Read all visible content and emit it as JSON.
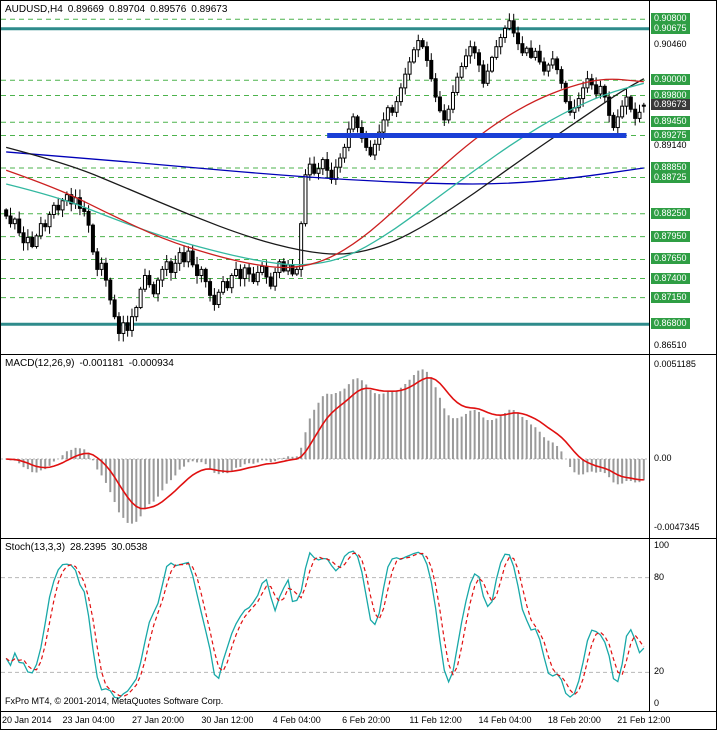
{
  "header": {
    "symbol": "AUDUSD,H4",
    "open": "0.89669",
    "high": "0.89704",
    "low": "0.89576",
    "close": "0.89673"
  },
  "footer": {
    "copyright": "FxPro MT4, © 2001-2014, MetaQuotes Software Corp."
  },
  "indicators": {
    "macd": {
      "label": "MACD(12,26,9)",
      "value_main": "-0.001181",
      "value_signal": "-0.000934",
      "axis_top": "0.0051185",
      "axis_zero": "0.00",
      "axis_bottom": "-0.0047345",
      "params": {
        "fast": 12,
        "slow": 26,
        "signal": 9
      }
    },
    "stoch": {
      "label": "Stoch(13,3,3)",
      "value_k": "28.2395",
      "value_d": "30.0538",
      "marks": [
        {
          "v": 100,
          "label": "100"
        },
        {
          "v": 80,
          "label": "80"
        },
        {
          "v": 20,
          "label": "20"
        },
        {
          "v": 0,
          "label": "0"
        }
      ],
      "levels": [
        80,
        20
      ],
      "params": {
        "k": 13,
        "d": 3,
        "slowing": 3
      }
    }
  },
  "colors": {
    "up_candle": "#ffffff",
    "down_candle": "#000000",
    "candle_outline": "#000000",
    "level_dashed": "#4db34d",
    "level_solid": "#2e8b8b",
    "badge": "#2f9e44",
    "badge_current": "#3a3a3a",
    "support": "#1a3fd6",
    "macd_hist": "#9a9a9a",
    "macd_signal": "#e01010",
    "stoch_k": "#18a8a8",
    "stoch_d": "#e01010",
    "grid": "#b8b8b8"
  },
  "chart_data": {
    "type": "candlestick+indicators",
    "symbol": "AUDUSD",
    "timeframe": "H4",
    "price_axis": {
      "min": 0.8645,
      "max": 0.91,
      "ticks": [
        {
          "value": 0.9046,
          "label": "0.90460"
        },
        {
          "value": 0.8914,
          "label": "0.89140"
        },
        {
          "value": 0.8651,
          "label": "0.86510"
        }
      ]
    },
    "current_price": 0.89673,
    "levels": [
      {
        "price": 0.908,
        "style": "dashed",
        "label": "0.90800"
      },
      {
        "price": 0.90675,
        "style": "solid",
        "label": "0.90675"
      },
      {
        "price": 0.9,
        "style": "dashed",
        "label": "0.90000"
      },
      {
        "price": 0.898,
        "style": "dashed",
        "label": "0.89800"
      },
      {
        "price": 0.8945,
        "style": "dashed",
        "label": "0.89450"
      },
      {
        "price": 0.89275,
        "style": "dashed",
        "label": "0.89275"
      },
      {
        "price": 0.8885,
        "style": "dashed",
        "label": "0.88850"
      },
      {
        "price": 0.88725,
        "style": "dashed",
        "label": "0.88725"
      },
      {
        "price": 0.8825,
        "style": "dashed",
        "label": "0.88250"
      },
      {
        "price": 0.8795,
        "style": "dashed",
        "label": "0.87950"
      },
      {
        "price": 0.8765,
        "style": "dashed",
        "label": "0.87650"
      },
      {
        "price": 0.874,
        "style": "dashed",
        "label": "0.87400"
      },
      {
        "price": 0.8715,
        "style": "dashed",
        "label": "0.87150"
      },
      {
        "price": 0.868,
        "style": "solid",
        "label": "0.86800"
      }
    ],
    "support_line": {
      "price": 0.89275,
      "from_bar": 74,
      "to_bar": 143
    },
    "candles": {
      "first_open": 0.883,
      "last_ohlc": [
        0.89669,
        0.89704,
        0.89576,
        0.89673
      ],
      "closes": [
        0.8822,
        0.8812,
        0.8818,
        0.88,
        0.8787,
        0.8794,
        0.8782,
        0.8796,
        0.8812,
        0.8808,
        0.8824,
        0.8836,
        0.883,
        0.8842,
        0.885,
        0.8838,
        0.8846,
        0.8832,
        0.8828,
        0.881,
        0.8775,
        0.8752,
        0.876,
        0.8738,
        0.8712,
        0.869,
        0.8668,
        0.8682,
        0.8672,
        0.869,
        0.8702,
        0.8726,
        0.8744,
        0.8732,
        0.872,
        0.8738,
        0.8752,
        0.8762,
        0.8748,
        0.876,
        0.8774,
        0.8762,
        0.8776,
        0.8758,
        0.8744,
        0.8752,
        0.8736,
        0.8718,
        0.8706,
        0.8722,
        0.8736,
        0.8728,
        0.8744,
        0.8752,
        0.874,
        0.8754,
        0.8746,
        0.8736,
        0.8748,
        0.8756,
        0.8742,
        0.873,
        0.8748,
        0.8762,
        0.875,
        0.8758,
        0.8746,
        0.8752,
        0.8812,
        0.8876,
        0.889,
        0.8878,
        0.8884,
        0.8896,
        0.8882,
        0.887,
        0.8886,
        0.8898,
        0.8912,
        0.8936,
        0.8952,
        0.8938,
        0.8924,
        0.8912,
        0.8902,
        0.8916,
        0.8932,
        0.8948,
        0.8964,
        0.8958,
        0.8972,
        0.899,
        0.9008,
        0.9024,
        0.904,
        0.9052,
        0.9044,
        0.9026,
        0.9002,
        0.8978,
        0.896,
        0.8948,
        0.8962,
        0.8984,
        0.9004,
        0.9018,
        0.9032,
        0.9044,
        0.9036,
        0.902,
        0.8996,
        0.9012,
        0.903,
        0.9044,
        0.9056,
        0.9068,
        0.9078,
        0.9062,
        0.9048,
        0.9036,
        0.9042,
        0.903,
        0.9038,
        0.9024,
        0.9012,
        0.902,
        0.9028,
        0.9014,
        0.8996,
        0.8972,
        0.8958,
        0.8964,
        0.8976,
        0.899,
        0.9002,
        0.8994,
        0.8982,
        0.8992,
        0.8978,
        0.8954,
        0.8938,
        0.8952,
        0.8966,
        0.8978,
        0.8962,
        0.895,
        0.8958,
        0.89673
      ]
    },
    "moving_averages": [
      {
        "name": "slow-blue",
        "color": "#0000b8",
        "points": [
          [
            0,
            0.8906
          ],
          [
            20,
            0.8897
          ],
          [
            40,
            0.8887
          ],
          [
            60,
            0.8877
          ],
          [
            80,
            0.8869
          ],
          [
            100,
            0.8864
          ],
          [
            115,
            0.8864
          ],
          [
            130,
            0.8871
          ],
          [
            147,
            0.8885
          ]
        ]
      },
      {
        "name": "long-black",
        "color": "#1a1a1a",
        "points": [
          [
            0,
            0.8912
          ],
          [
            14,
            0.8891
          ],
          [
            28,
            0.8858
          ],
          [
            42,
            0.8824
          ],
          [
            56,
            0.8794
          ],
          [
            68,
            0.8776
          ],
          [
            78,
            0.877
          ],
          [
            88,
            0.8784
          ],
          [
            98,
            0.8814
          ],
          [
            108,
            0.8852
          ],
          [
            118,
            0.8893
          ],
          [
            128,
            0.8932
          ],
          [
            136,
            0.8963
          ],
          [
            142,
            0.8986
          ],
          [
            147,
            0.9002
          ]
        ]
      },
      {
        "name": "mid-teal",
        "color": "#33b8a0",
        "points": [
          [
            0,
            0.8864
          ],
          [
            12,
            0.8847
          ],
          [
            24,
            0.882
          ],
          [
            36,
            0.8795
          ],
          [
            48,
            0.8776
          ],
          [
            58,
            0.8763
          ],
          [
            68,
            0.8756
          ],
          [
            78,
            0.8766
          ],
          [
            88,
            0.8798
          ],
          [
            98,
            0.884
          ],
          [
            108,
            0.8882
          ],
          [
            118,
            0.8922
          ],
          [
            128,
            0.8956
          ],
          [
            138,
            0.8982
          ],
          [
            147,
            0.8996
          ]
        ]
      },
      {
        "name": "fast-red",
        "color": "#cc2020",
        "points": [
          [
            0,
            0.8882
          ],
          [
            12,
            0.8858
          ],
          [
            24,
            0.8824
          ],
          [
            36,
            0.8792
          ],
          [
            48,
            0.877
          ],
          [
            58,
            0.8757
          ],
          [
            66,
            0.8753
          ],
          [
            74,
            0.8764
          ],
          [
            82,
            0.8792
          ],
          [
            90,
            0.8832
          ],
          [
            98,
            0.8874
          ],
          [
            106,
            0.8914
          ],
          [
            114,
            0.8948
          ],
          [
            122,
            0.8974
          ],
          [
            130,
            0.8992
          ],
          [
            138,
            0.9003
          ],
          [
            147,
            0.8998
          ]
        ]
      }
    ],
    "time_axis": [
      {
        "bar": 3,
        "label": "20 Jan 2014"
      },
      {
        "bar": 19,
        "label": "23 Jan 04:00"
      },
      {
        "bar": 35,
        "label": "27 Jan 20:00"
      },
      {
        "bar": 51,
        "label": "30 Jan 12:00"
      },
      {
        "bar": 67,
        "label": "4 Feb 04:00"
      },
      {
        "bar": 83,
        "label": "6 Feb 20:00"
      },
      {
        "bar": 99,
        "label": "11 Feb 12:00"
      },
      {
        "bar": 115,
        "label": "14 Feb 04:00"
      },
      {
        "bar": 131,
        "label": "18 Feb 20:00"
      },
      {
        "bar": 147,
        "label": "21 Feb 12:00"
      }
    ]
  }
}
